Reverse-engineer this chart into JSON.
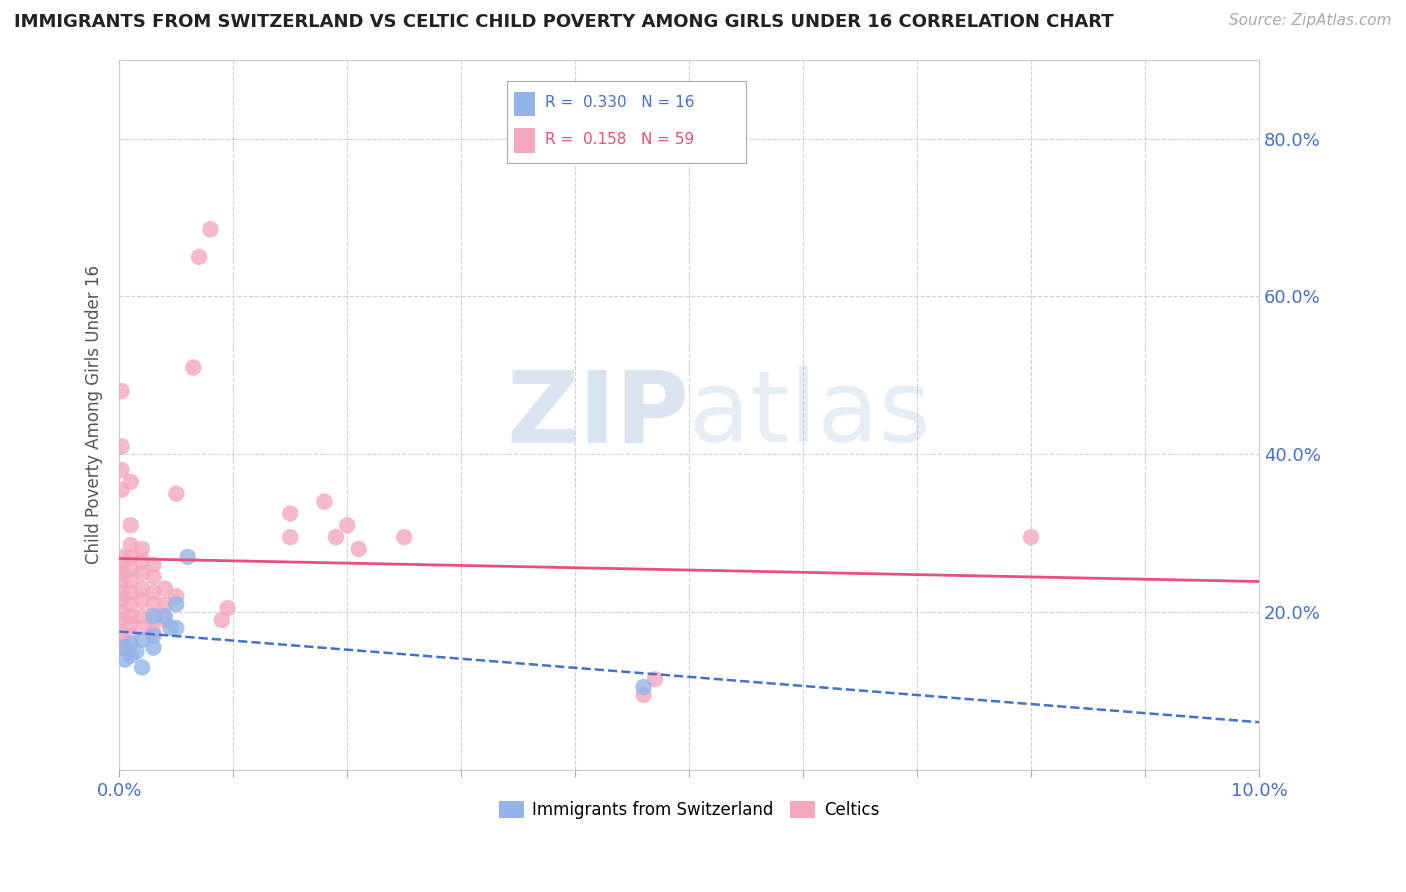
{
  "title": "IMMIGRANTS FROM SWITZERLAND VS CELTIC CHILD POVERTY AMONG GIRLS UNDER 16 CORRELATION CHART",
  "source": "Source: ZipAtlas.com",
  "ylabel": "Child Poverty Among Girls Under 16",
  "xlim": [
    0.0,
    0.1
  ],
  "ylim": [
    0.0,
    0.9
  ],
  "background_color": "#ffffff",
  "swiss_color": "#92b4e8",
  "celtic_color": "#f4a8c0",
  "swiss_line_color": "#4472c4",
  "celtic_line_color": "#e8507a",
  "swiss_r": 0.33,
  "swiss_n": 16,
  "celtic_r": 0.158,
  "celtic_n": 59,
  "swiss_scatter": [
    [
      0.0005,
      0.155
    ],
    [
      0.0005,
      0.14
    ],
    [
      0.001,
      0.16
    ],
    [
      0.001,
      0.145
    ],
    [
      0.0015,
      0.15
    ],
    [
      0.002,
      0.165
    ],
    [
      0.002,
      0.13
    ],
    [
      0.003,
      0.17
    ],
    [
      0.003,
      0.155
    ],
    [
      0.003,
      0.195
    ],
    [
      0.004,
      0.195
    ],
    [
      0.0045,
      0.18
    ],
    [
      0.005,
      0.21
    ],
    [
      0.005,
      0.18
    ],
    [
      0.006,
      0.27
    ],
    [
      0.046,
      0.105
    ]
  ],
  "celtic_scatter": [
    [
      0.0002,
      0.155
    ],
    [
      0.0002,
      0.165
    ],
    [
      0.0002,
      0.175
    ],
    [
      0.0002,
      0.19
    ],
    [
      0.0002,
      0.2
    ],
    [
      0.0002,
      0.215
    ],
    [
      0.0002,
      0.225
    ],
    [
      0.0002,
      0.24
    ],
    [
      0.0002,
      0.25
    ],
    [
      0.0002,
      0.26
    ],
    [
      0.0002,
      0.27
    ],
    [
      0.0002,
      0.355
    ],
    [
      0.0002,
      0.38
    ],
    [
      0.0002,
      0.41
    ],
    [
      0.0002,
      0.48
    ],
    [
      0.001,
      0.17
    ],
    [
      0.001,
      0.185
    ],
    [
      0.001,
      0.195
    ],
    [
      0.001,
      0.21
    ],
    [
      0.001,
      0.225
    ],
    [
      0.001,
      0.24
    ],
    [
      0.001,
      0.255
    ],
    [
      0.001,
      0.27
    ],
    [
      0.001,
      0.285
    ],
    [
      0.001,
      0.31
    ],
    [
      0.001,
      0.365
    ],
    [
      0.002,
      0.18
    ],
    [
      0.002,
      0.195
    ],
    [
      0.002,
      0.215
    ],
    [
      0.002,
      0.23
    ],
    [
      0.002,
      0.25
    ],
    [
      0.002,
      0.265
    ],
    [
      0.002,
      0.28
    ],
    [
      0.003,
      0.175
    ],
    [
      0.003,
      0.19
    ],
    [
      0.003,
      0.21
    ],
    [
      0.003,
      0.225
    ],
    [
      0.003,
      0.245
    ],
    [
      0.003,
      0.26
    ],
    [
      0.004,
      0.19
    ],
    [
      0.004,
      0.21
    ],
    [
      0.004,
      0.23
    ],
    [
      0.005,
      0.22
    ],
    [
      0.005,
      0.35
    ],
    [
      0.0065,
      0.51
    ],
    [
      0.007,
      0.65
    ],
    [
      0.008,
      0.685
    ],
    [
      0.009,
      0.19
    ],
    [
      0.0095,
      0.205
    ],
    [
      0.015,
      0.295
    ],
    [
      0.015,
      0.325
    ],
    [
      0.018,
      0.34
    ],
    [
      0.019,
      0.295
    ],
    [
      0.02,
      0.31
    ],
    [
      0.021,
      0.28
    ],
    [
      0.025,
      0.295
    ],
    [
      0.046,
      0.095
    ],
    [
      0.047,
      0.115
    ],
    [
      0.08,
      0.295
    ]
  ]
}
